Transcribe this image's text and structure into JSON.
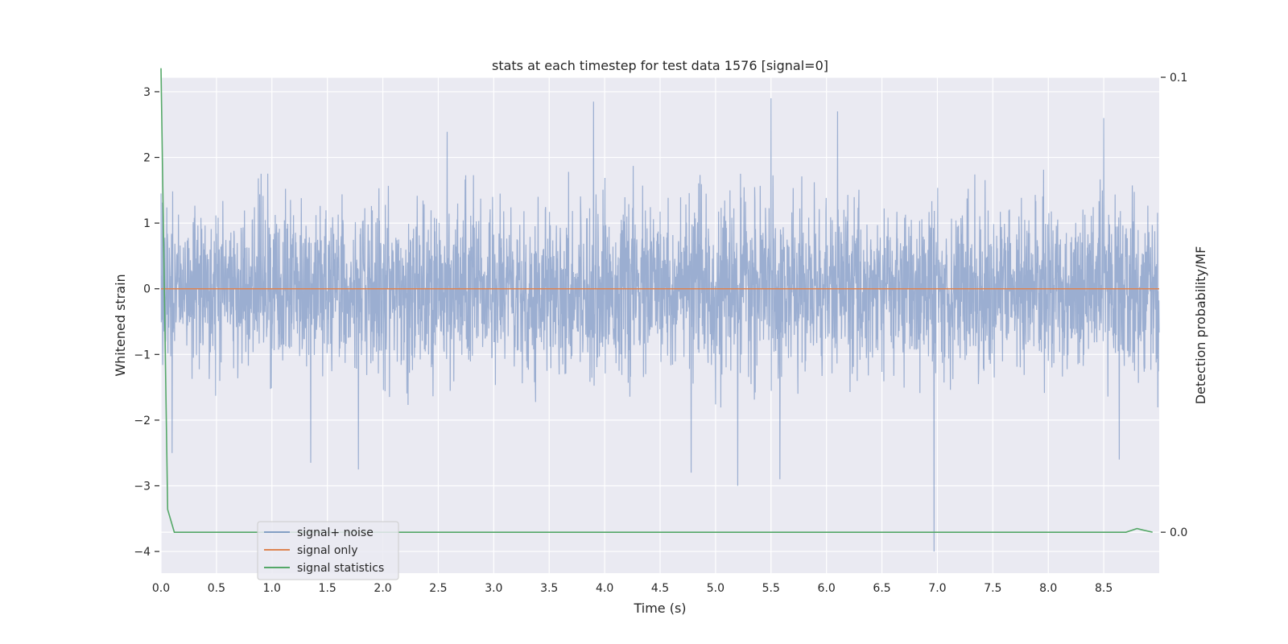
{
  "chart_data": {
    "type": "line",
    "title": "stats at each timestep for test data 1576 [signal=0]",
    "xlabel": "Time (s)",
    "ylabel": "Whitened strain",
    "ylabel_right": "Detection probability/MF",
    "xlim": [
      0.0,
      9.0
    ],
    "ylim": [
      -4.33,
      3.22
    ],
    "ylim_right": [
      -0.009,
      0.1
    ],
    "xticks": [
      "0.0",
      "0.5",
      "1.0",
      "1.5",
      "2.0",
      "2.5",
      "3.0",
      "3.5",
      "4.0",
      "4.5",
      "5.0",
      "5.5",
      "6.0",
      "6.5",
      "7.0",
      "7.5",
      "8.0",
      "8.5"
    ],
    "yticks": [
      "3",
      "2",
      "1",
      "0",
      "−1",
      "−2",
      "−3",
      "−4"
    ],
    "yticks_right": [
      "0.1",
      "0.0"
    ],
    "grid": true,
    "legend_position": "lower-left",
    "background": "#eaeaf2",
    "series": [
      {
        "name": "signal+ noise",
        "color": "#4c72b0",
        "axis": "left",
        "description_noise_std": 0.62,
        "x_range": [
          0.0,
          9.0
        ],
        "notable_peaks": [
          {
            "x": 0.0,
            "y": 1.45
          },
          {
            "x": 0.1,
            "y": -2.5
          },
          {
            "x": 1.35,
            "y": -2.65
          },
          {
            "x": 1.78,
            "y": -2.75
          },
          {
            "x": 3.9,
            "y": 2.85
          },
          {
            "x": 4.78,
            "y": -2.8
          },
          {
            "x": 5.2,
            "y": -3.0
          },
          {
            "x": 5.5,
            "y": 2.9
          },
          {
            "x": 5.58,
            "y": -2.9
          },
          {
            "x": 6.1,
            "y": 2.7
          },
          {
            "x": 6.97,
            "y": -4.0
          },
          {
            "x": 8.5,
            "y": 2.6
          }
        ]
      },
      {
        "name": "signal only",
        "color": "#dd8452",
        "axis": "left",
        "x": [
          0.0,
          9.0
        ],
        "y": [
          0.0,
          0.0
        ]
      },
      {
        "name": "signal statistics",
        "color": "#55a868",
        "axis": "right",
        "x": [
          0.0,
          0.06,
          0.12,
          0.3,
          1.0,
          2.0,
          3.0,
          4.0,
          5.0,
          6.0,
          7.0,
          8.0,
          8.7,
          8.8,
          8.85,
          8.94
        ],
        "y": [
          0.102,
          0.005,
          0.0,
          0.0,
          0.0,
          0.0,
          0.0,
          0.0,
          0.0,
          0.0,
          0.0,
          0.0,
          0.0,
          0.0008,
          0.0005,
          0.0
        ]
      }
    ]
  }
}
